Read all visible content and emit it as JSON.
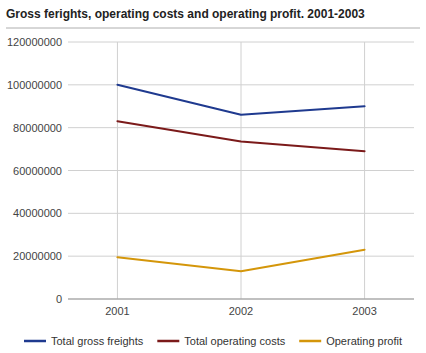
{
  "chart_data": {
    "type": "line",
    "title": "Gross ferights, operating costs and operating profit. 2001-2003",
    "x": [
      2001,
      2002,
      2003
    ],
    "series": [
      {
        "name": "Total gross freights",
        "color": "#1f3a8f",
        "values": [
          100000000,
          86000000,
          90000000
        ]
      },
      {
        "name": "Total operating costs",
        "color": "#7b1a1a",
        "values": [
          83000000,
          73500000,
          69000000
        ]
      },
      {
        "name": "Operating profit",
        "color": "#d4960a",
        "values": [
          19500000,
          13000000,
          23000000
        ]
      }
    ],
    "xlim": [
      2000.6,
      2003.4
    ],
    "xticks": [
      2001,
      2002,
      2003
    ],
    "ylim": [
      0,
      120000000
    ],
    "yticks": [
      0,
      20000000,
      40000000,
      60000000,
      80000000,
      100000000,
      120000000
    ],
    "grid": true,
    "legend": "bottom"
  }
}
